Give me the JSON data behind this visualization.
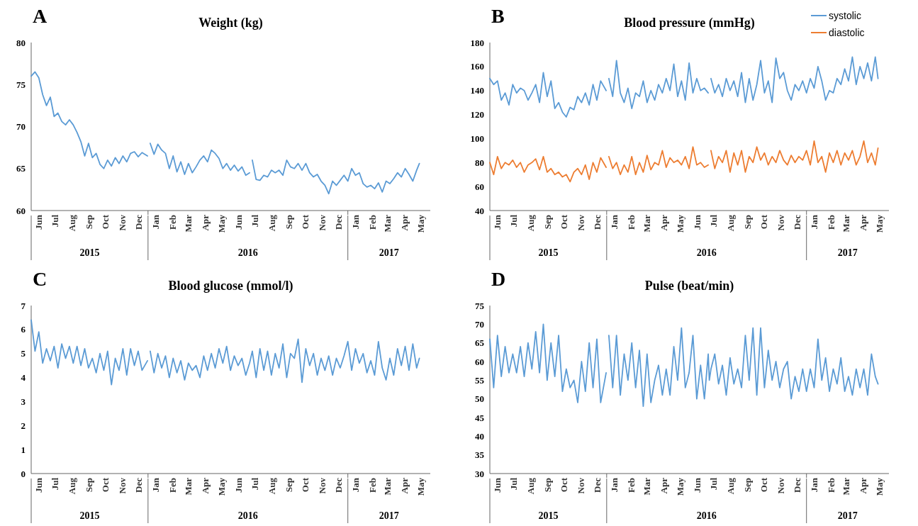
{
  "chart_data": [
    {
      "type": "line",
      "title": "Weight (kg)",
      "annotations": [
        "A",
        "2015",
        "2016",
        "2017"
      ],
      "legend": false,
      "grid": false,
      "x": [
        "2015-06-01",
        "2015-06-08",
        "2015-06-15",
        "2015-06-22",
        "2015-06-29",
        "2015-07-06",
        "2015-07-13",
        "2015-07-20",
        "2015-07-27",
        "2015-08-03",
        "2015-08-10",
        "2015-08-17",
        "2015-08-24",
        "2015-08-31",
        "2015-09-07",
        "2015-09-14",
        "2015-09-21",
        "2015-09-28",
        "2015-10-05",
        "2015-10-12",
        "2015-10-19",
        "2015-10-26",
        "2015-11-02",
        "2015-11-09",
        "2015-11-16",
        "2015-11-23",
        "2015-11-30",
        "2015-12-07",
        "2015-12-14",
        "2015-12-21",
        "2015-12-31",
        "2016-01-01",
        "2016-01-05",
        "2016-01-12",
        "2016-01-19",
        "2016-01-26",
        "2016-02-02",
        "2016-02-09",
        "2016-02-16",
        "2016-02-23",
        "2016-03-01",
        "2016-03-08",
        "2016-03-15",
        "2016-03-22",
        "2016-03-29",
        "2016-04-05",
        "2016-04-12",
        "2016-04-19",
        "2016-04-26",
        "2016-05-03",
        "2016-05-10",
        "2016-05-17",
        "2016-05-24",
        "2016-05-31",
        "2016-06-07",
        "2016-06-14",
        "2016-06-21",
        "2016-06-28",
        "2016-07-05",
        "2016-07-07",
        "2016-07-10",
        "2016-07-17",
        "2016-07-24",
        "2016-07-31",
        "2016-08-07",
        "2016-08-14",
        "2016-08-21",
        "2016-08-28",
        "2016-09-04",
        "2016-09-11",
        "2016-09-18",
        "2016-09-25",
        "2016-10-02",
        "2016-10-09",
        "2016-10-16",
        "2016-10-23",
        "2016-10-30",
        "2016-11-06",
        "2016-11-13",
        "2016-11-20",
        "2016-11-27",
        "2016-12-04",
        "2016-12-11",
        "2016-12-18",
        "2016-12-25",
        "2017-01-01",
        "2017-01-08",
        "2017-01-15",
        "2017-01-22",
        "2017-01-29",
        "2017-02-05",
        "2017-02-12",
        "2017-02-19",
        "2017-02-26",
        "2017-03-05",
        "2017-03-12",
        "2017-03-19",
        "2017-03-26",
        "2017-04-02",
        "2017-04-09",
        "2017-04-16",
        "2017-04-23",
        "2017-04-30",
        "2017-05-07",
        "2017-05-12"
      ],
      "xlim": [
        "2015-06-01",
        "2017-06-01"
      ],
      "xticks": [
        {
          "value": "2015-06-15",
          "label": "Jun"
        },
        {
          "value": "2015-07-15",
          "label": "Jul"
        },
        {
          "value": "2015-08-15",
          "label": "Aug"
        },
        {
          "value": "2015-09-15",
          "label": "Sep"
        },
        {
          "value": "2015-10-15",
          "label": "Oct"
        },
        {
          "value": "2015-11-15",
          "label": "Nov"
        },
        {
          "value": "2015-12-15",
          "label": "Dec"
        },
        {
          "value": "2016-01-01",
          "label": null
        },
        {
          "value": "2016-01-15",
          "label": "Jan"
        },
        {
          "value": "2016-02-15",
          "label": "Feb"
        },
        {
          "value": "2016-03-15",
          "label": "Mar"
        },
        {
          "value": "2016-04-15",
          "label": "Apr"
        },
        {
          "value": "2016-05-15",
          "label": "May"
        },
        {
          "value": "2016-06-15",
          "label": "Jun"
        },
        {
          "value": "2016-07-15",
          "label": "Jul"
        },
        {
          "value": "2016-08-15",
          "label": "Aug"
        },
        {
          "value": "2016-09-15",
          "label": "Sep"
        },
        {
          "value": "2016-10-15",
          "label": "Oct"
        },
        {
          "value": "2016-11-15",
          "label": "Nov"
        },
        {
          "value": "2016-12-15",
          "label": "Dec"
        },
        {
          "value": "2017-01-01",
          "label": null
        },
        {
          "value": "2017-01-15",
          "label": "Jan"
        },
        {
          "value": "2017-02-15",
          "label": "Feb"
        },
        {
          "value": "2017-03-15",
          "label": "Mar"
        },
        {
          "value": "2017-04-15",
          "label": "Apr"
        },
        {
          "value": "2017-05-15",
          "label": "May"
        }
      ],
      "ylim": [
        60,
        80
      ],
      "yticks": [
        60,
        65,
        70,
        75,
        80
      ],
      "series": [
        {
          "color": "#5b9bd5",
          "values": [
            76,
            76.5,
            75.8,
            73.8,
            72.5,
            73.5,
            71.2,
            71.6,
            70.6,
            70.2,
            70.8,
            70.2,
            69.3,
            68.2,
            66.5,
            68,
            66.3,
            66.8,
            65.5,
            65,
            66,
            65.3,
            66.3,
            65.6,
            66.5,
            65.8,
            66.8,
            67,
            66.4,
            66.9,
            66.5,
            null,
            68,
            66.7,
            67.9,
            67.2,
            66.8,
            65,
            66.5,
            64.6,
            65.8,
            64.3,
            65.6,
            64.5,
            65.2,
            66,
            66.5,
            65.8,
            67.2,
            66.8,
            66.2,
            65,
            65.6,
            64.8,
            65.4,
            64.7,
            65.2,
            64.2,
            64.5,
            null,
            66,
            63.7,
            63.6,
            64.2,
            64,
            64.8,
            64.5,
            64.8,
            64.2,
            66,
            65.2,
            65,
            65.6,
            64.8,
            65.6,
            64.5,
            64,
            64.3,
            63.5,
            63,
            62,
            63.5,
            63,
            63.6,
            64.2,
            63.5,
            65,
            64.2,
            64.5,
            63.2,
            62.8,
            63,
            62.6,
            63.3,
            62.2,
            63.5,
            63.2,
            63.8,
            64.5,
            64,
            65,
            64.3,
            63.5,
            64.8,
            65.6
          ]
        }
      ]
    },
    {
      "type": "line",
      "title": "Blood pressure (mmHg)",
      "annotations": [
        "B",
        "2015",
        "2016",
        "2017"
      ],
      "legend": "top right",
      "grid": false,
      "x": [
        "2015-06-01",
        "2015-06-08",
        "2015-06-15",
        "2015-06-22",
        "2015-06-29",
        "2015-07-06",
        "2015-07-13",
        "2015-07-20",
        "2015-07-27",
        "2015-08-03",
        "2015-08-10",
        "2015-08-17",
        "2015-08-24",
        "2015-08-31",
        "2015-09-07",
        "2015-09-14",
        "2015-09-21",
        "2015-09-28",
        "2015-10-05",
        "2015-10-12",
        "2015-10-19",
        "2015-10-26",
        "2015-11-02",
        "2015-11-09",
        "2015-11-16",
        "2015-11-23",
        "2015-11-30",
        "2015-12-07",
        "2015-12-14",
        "2015-12-21",
        "2015-12-31",
        "2016-01-01",
        "2016-01-05",
        "2016-01-12",
        "2016-01-19",
        "2016-01-26",
        "2016-02-02",
        "2016-02-09",
        "2016-02-16",
        "2016-02-23",
        "2016-03-01",
        "2016-03-08",
        "2016-03-15",
        "2016-03-22",
        "2016-03-29",
        "2016-04-05",
        "2016-04-12",
        "2016-04-19",
        "2016-04-26",
        "2016-05-03",
        "2016-05-10",
        "2016-05-17",
        "2016-05-24",
        "2016-05-31",
        "2016-06-07",
        "2016-06-14",
        "2016-06-21",
        "2016-06-28",
        "2016-07-05",
        "2016-07-07",
        "2016-07-10",
        "2016-07-17",
        "2016-07-24",
        "2016-07-31",
        "2016-08-07",
        "2016-08-14",
        "2016-08-21",
        "2016-08-28",
        "2016-09-04",
        "2016-09-11",
        "2016-09-18",
        "2016-09-25",
        "2016-10-02",
        "2016-10-09",
        "2016-10-16",
        "2016-10-23",
        "2016-10-30",
        "2016-11-06",
        "2016-11-13",
        "2016-11-20",
        "2016-11-27",
        "2016-12-04",
        "2016-12-11",
        "2016-12-18",
        "2016-12-25",
        "2017-01-01",
        "2017-01-08",
        "2017-01-15",
        "2017-01-22",
        "2017-01-29",
        "2017-02-05",
        "2017-02-12",
        "2017-02-19",
        "2017-02-26",
        "2017-03-05",
        "2017-03-12",
        "2017-03-19",
        "2017-03-26",
        "2017-04-02",
        "2017-04-09",
        "2017-04-16",
        "2017-04-23",
        "2017-04-30",
        "2017-05-07",
        "2017-05-12"
      ],
      "xlim": [
        "2015-06-01",
        "2017-06-01"
      ],
      "xticks": [
        {
          "value": "2015-06-15",
          "label": "Jun"
        },
        {
          "value": "2015-07-15",
          "label": "Jul"
        },
        {
          "value": "2015-08-15",
          "label": "Aug"
        },
        {
          "value": "2015-09-15",
          "label": "Sep"
        },
        {
          "value": "2015-10-15",
          "label": "Oct"
        },
        {
          "value": "2015-11-15",
          "label": "Nov"
        },
        {
          "value": "2015-12-15",
          "label": "Dec"
        },
        {
          "value": "2016-01-01",
          "label": null
        },
        {
          "value": "2016-01-15",
          "label": "Jan"
        },
        {
          "value": "2016-02-15",
          "label": "Feb"
        },
        {
          "value": "2016-03-15",
          "label": "Mar"
        },
        {
          "value": "2016-04-15",
          "label": "Apr"
        },
        {
          "value": "2016-05-15",
          "label": "May"
        },
        {
          "value": "2016-06-15",
          "label": "Jun"
        },
        {
          "value": "2016-07-15",
          "label": "Jul"
        },
        {
          "value": "2016-08-15",
          "label": "Aug"
        },
        {
          "value": "2016-09-15",
          "label": "Sep"
        },
        {
          "value": "2016-10-15",
          "label": "Oct"
        },
        {
          "value": "2016-11-15",
          "label": "Nov"
        },
        {
          "value": "2016-12-15",
          "label": "Dec"
        },
        {
          "value": "2017-01-01",
          "label": null
        },
        {
          "value": "2017-01-15",
          "label": "Jan"
        },
        {
          "value": "2017-02-15",
          "label": "Feb"
        },
        {
          "value": "2017-03-15",
          "label": "Mar"
        },
        {
          "value": "2017-04-15",
          "label": "Apr"
        },
        {
          "value": "2017-05-15",
          "label": "May"
        }
      ],
      "ylim": [
        40,
        180
      ],
      "yticks": [
        40,
        60,
        80,
        100,
        120,
        140,
        160,
        180
      ],
      "series": [
        {
          "name": "systolic",
          "color": "#5b9bd5",
          "values": [
            150,
            145,
            148,
            132,
            138,
            128,
            145,
            138,
            142,
            140,
            132,
            138,
            145,
            130,
            155,
            135,
            148,
            125,
            130,
            122,
            118,
            126,
            124,
            135,
            130,
            138,
            128,
            145,
            132,
            148,
            140,
            null,
            150,
            135,
            165,
            138,
            130,
            142,
            125,
            138,
            135,
            148,
            130,
            140,
            132,
            145,
            138,
            150,
            140,
            162,
            135,
            148,
            132,
            163,
            138,
            150,
            140,
            142,
            138,
            null,
            150,
            138,
            145,
            135,
            150,
            140,
            148,
            135,
            155,
            130,
            150,
            132,
            145,
            165,
            138,
            148,
            130,
            167,
            150,
            155,
            140,
            132,
            145,
            140,
            148,
            138,
            150,
            142,
            160,
            148,
            132,
            140,
            138,
            150,
            145,
            158,
            148,
            168,
            145,
            160,
            150,
            163,
            148,
            168,
            150
          ]
        },
        {
          "name": "diastolic",
          "color": "#ed7d31",
          "values": [
            80,
            70,
            85,
            75,
            80,
            78,
            82,
            76,
            80,
            72,
            78,
            80,
            83,
            74,
            85,
            72,
            75,
            70,
            72,
            68,
            70,
            64,
            72,
            75,
            70,
            78,
            66,
            80,
            72,
            84,
            76,
            null,
            85,
            75,
            80,
            70,
            78,
            72,
            85,
            70,
            80,
            72,
            86,
            74,
            80,
            78,
            90,
            76,
            84,
            80,
            82,
            78,
            85,
            75,
            93,
            78,
            80,
            76,
            78,
            null,
            90,
            75,
            85,
            80,
            90,
            72,
            88,
            78,
            90,
            72,
            85,
            80,
            93,
            82,
            88,
            78,
            85,
            80,
            90,
            82,
            78,
            86,
            80,
            85,
            82,
            90,
            78,
            98,
            80,
            85,
            72,
            88,
            80,
            90,
            78,
            88,
            82,
            90,
            78,
            85,
            98,
            80,
            88,
            78,
            92
          ]
        }
      ]
    },
    {
      "type": "line",
      "title": "Blood glucose (mmol/l)",
      "annotations": [
        "C",
        "2015",
        "2016",
        "2017"
      ],
      "legend": false,
      "grid": false,
      "x": [
        "2015-06-01",
        "2015-06-08",
        "2015-06-15",
        "2015-06-22",
        "2015-06-29",
        "2015-07-06",
        "2015-07-13",
        "2015-07-20",
        "2015-07-27",
        "2015-08-03",
        "2015-08-10",
        "2015-08-17",
        "2015-08-24",
        "2015-08-31",
        "2015-09-07",
        "2015-09-14",
        "2015-09-21",
        "2015-09-28",
        "2015-10-05",
        "2015-10-12",
        "2015-10-19",
        "2015-10-26",
        "2015-11-02",
        "2015-11-09",
        "2015-11-16",
        "2015-11-23",
        "2015-11-30",
        "2015-12-07",
        "2015-12-14",
        "2015-12-21",
        "2015-12-31",
        "2016-01-01",
        "2016-01-05",
        "2016-01-12",
        "2016-01-19",
        "2016-01-26",
        "2016-02-02",
        "2016-02-09",
        "2016-02-16",
        "2016-02-23",
        "2016-03-01",
        "2016-03-08",
        "2016-03-15",
        "2016-03-22",
        "2016-03-29",
        "2016-04-05",
        "2016-04-12",
        "2016-04-19",
        "2016-04-26",
        "2016-05-03",
        "2016-05-10",
        "2016-05-17",
        "2016-05-24",
        "2016-05-31",
        "2016-06-07",
        "2016-06-14",
        "2016-06-21",
        "2016-06-28",
        "2016-07-05",
        "2016-07-07",
        "2016-07-10",
        "2016-07-17",
        "2016-07-24",
        "2016-07-31",
        "2016-08-07",
        "2016-08-14",
        "2016-08-21",
        "2016-08-28",
        "2016-09-04",
        "2016-09-11",
        "2016-09-18",
        "2016-09-25",
        "2016-10-02",
        "2016-10-09",
        "2016-10-16",
        "2016-10-23",
        "2016-10-30",
        "2016-11-06",
        "2016-11-13",
        "2016-11-20",
        "2016-11-27",
        "2016-12-04",
        "2016-12-11",
        "2016-12-18",
        "2016-12-25",
        "2017-01-01",
        "2017-01-08",
        "2017-01-15",
        "2017-01-22",
        "2017-01-29",
        "2017-02-05",
        "2017-02-12",
        "2017-02-19",
        "2017-02-26",
        "2017-03-05",
        "2017-03-12",
        "2017-03-19",
        "2017-03-26",
        "2017-04-02",
        "2017-04-09",
        "2017-04-16",
        "2017-04-23",
        "2017-04-30",
        "2017-05-07",
        "2017-05-12"
      ],
      "xlim": [
        "2015-06-01",
        "2017-06-01"
      ],
      "xticks": [
        {
          "value": "2015-06-15",
          "label": "Jun"
        },
        {
          "value": "2015-07-15",
          "label": "Jul"
        },
        {
          "value": "2015-08-15",
          "label": "Aug"
        },
        {
          "value": "2015-09-15",
          "label": "Sep"
        },
        {
          "value": "2015-10-15",
          "label": "Oct"
        },
        {
          "value": "2015-11-15",
          "label": "Nov"
        },
        {
          "value": "2015-12-15",
          "label": "Dec"
        },
        {
          "value": "2016-01-01",
          "label": null
        },
        {
          "value": "2016-01-15",
          "label": "Jan"
        },
        {
          "value": "2016-02-15",
          "label": "Feb"
        },
        {
          "value": "2016-03-15",
          "label": "Mar"
        },
        {
          "value": "2016-04-15",
          "label": "Apr"
        },
        {
          "value": "2016-05-15",
          "label": "May"
        },
        {
          "value": "2016-06-15",
          "label": "Jun"
        },
        {
          "value": "2016-07-15",
          "label": "Jul"
        },
        {
          "value": "2016-08-15",
          "label": "Aug"
        },
        {
          "value": "2016-09-15",
          "label": "Sep"
        },
        {
          "value": "2016-10-15",
          "label": "Oct"
        },
        {
          "value": "2016-11-15",
          "label": "Nov"
        },
        {
          "value": "2016-12-15",
          "label": "Dec"
        },
        {
          "value": "2017-01-01",
          "label": null
        },
        {
          "value": "2017-01-15",
          "label": "Jan"
        },
        {
          "value": "2017-02-15",
          "label": "Feb"
        },
        {
          "value": "2017-03-15",
          "label": "Mar"
        },
        {
          "value": "2017-04-15",
          "label": "Apr"
        },
        {
          "value": "2017-05-15",
          "label": "May"
        }
      ],
      "ylim": [
        0,
        7
      ],
      "yticks": [
        0,
        1,
        2,
        3,
        4,
        5,
        6,
        7
      ],
      "series": [
        {
          "color": "#5b9bd5",
          "values": [
            6.4,
            5.1,
            5.9,
            4.6,
            5.2,
            4.7,
            5.3,
            4.4,
            5.4,
            4.8,
            5.3,
            4.6,
            5.3,
            4.5,
            5.2,
            4.4,
            4.8,
            4.2,
            5.0,
            4.3,
            5.1,
            3.7,
            4.8,
            4.3,
            5.2,
            4.1,
            5.2,
            4.5,
            5.1,
            4.3,
            4.7,
            null,
            5.1,
            4.2,
            5.0,
            4.4,
            4.9,
            4.0,
            4.8,
            4.2,
            4.7,
            3.9,
            4.6,
            4.3,
            4.5,
            4.0,
            4.9,
            4.3,
            5.0,
            4.4,
            5.2,
            4.6,
            5.3,
            4.3,
            4.9,
            4.5,
            4.8,
            4.1,
            4.6,
            4.8,
            5.1,
            4.0,
            5.2,
            4.3,
            5.1,
            4.1,
            5.0,
            4.4,
            5.4,
            4.0,
            5.0,
            4.8,
            5.6,
            3.8,
            5.2,
            4.5,
            5.0,
            4.1,
            4.8,
            4.3,
            4.9,
            4.1,
            4.8,
            4.4,
            4.9,
            5.5,
            4.3,
            5.2,
            4.6,
            5.0,
            4.2,
            4.7,
            4.1,
            5.5,
            4.4,
            3.9,
            4.8,
            4.1,
            5.2,
            4.5,
            5.3,
            4.3,
            5.4,
            4.4,
            4.8
          ]
        }
      ]
    },
    {
      "type": "line",
      "title": "Pulse (beat/min)",
      "annotations": [
        "D",
        "2015",
        "2016",
        "2017"
      ],
      "legend": false,
      "grid": false,
      "x": [
        "2015-06-01",
        "2015-06-08",
        "2015-06-15",
        "2015-06-22",
        "2015-06-29",
        "2015-07-06",
        "2015-07-13",
        "2015-07-20",
        "2015-07-27",
        "2015-08-03",
        "2015-08-10",
        "2015-08-17",
        "2015-08-24",
        "2015-08-31",
        "2015-09-07",
        "2015-09-14",
        "2015-09-21",
        "2015-09-28",
        "2015-10-05",
        "2015-10-12",
        "2015-10-19",
        "2015-10-26",
        "2015-11-02",
        "2015-11-09",
        "2015-11-16",
        "2015-11-23",
        "2015-11-30",
        "2015-12-07",
        "2015-12-14",
        "2015-12-21",
        "2015-12-31",
        "2016-01-01",
        "2016-01-05",
        "2016-01-12",
        "2016-01-19",
        "2016-01-26",
        "2016-02-02",
        "2016-02-09",
        "2016-02-16",
        "2016-02-23",
        "2016-03-01",
        "2016-03-08",
        "2016-03-15",
        "2016-03-22",
        "2016-03-29",
        "2016-04-05",
        "2016-04-12",
        "2016-04-19",
        "2016-04-26",
        "2016-05-03",
        "2016-05-10",
        "2016-05-17",
        "2016-05-24",
        "2016-05-31",
        "2016-06-07",
        "2016-06-14",
        "2016-06-21",
        "2016-06-28",
        "2016-07-05",
        "2016-07-07",
        "2016-07-10",
        "2016-07-17",
        "2016-07-24",
        "2016-07-31",
        "2016-08-07",
        "2016-08-14",
        "2016-08-21",
        "2016-08-28",
        "2016-09-04",
        "2016-09-11",
        "2016-09-18",
        "2016-09-25",
        "2016-10-02",
        "2016-10-09",
        "2016-10-16",
        "2016-10-23",
        "2016-10-30",
        "2016-11-06",
        "2016-11-13",
        "2016-11-20",
        "2016-11-27",
        "2016-12-04",
        "2016-12-11",
        "2016-12-18",
        "2016-12-25",
        "2017-01-01",
        "2017-01-08",
        "2017-01-15",
        "2017-01-22",
        "2017-01-29",
        "2017-02-05",
        "2017-02-12",
        "2017-02-19",
        "2017-02-26",
        "2017-03-05",
        "2017-03-12",
        "2017-03-19",
        "2017-03-26",
        "2017-04-02",
        "2017-04-09",
        "2017-04-16",
        "2017-04-23",
        "2017-04-30",
        "2017-05-07",
        "2017-05-12"
      ],
      "xlim": [
        "2015-06-01",
        "2017-06-01"
      ],
      "xticks": [
        {
          "value": "2015-06-15",
          "label": "Jun"
        },
        {
          "value": "2015-07-15",
          "label": "Jul"
        },
        {
          "value": "2015-08-15",
          "label": "Aug"
        },
        {
          "value": "2015-09-15",
          "label": "Sep"
        },
        {
          "value": "2015-10-15",
          "label": "Oct"
        },
        {
          "value": "2015-11-15",
          "label": "Nov"
        },
        {
          "value": "2015-12-15",
          "label": "Dec"
        },
        {
          "value": "2016-01-01",
          "label": null
        },
        {
          "value": "2016-01-15",
          "label": "Jan"
        },
        {
          "value": "2016-02-15",
          "label": "Feb"
        },
        {
          "value": "2016-03-15",
          "label": "Mar"
        },
        {
          "value": "2016-04-15",
          "label": "Apr"
        },
        {
          "value": "2016-05-15",
          "label": "May"
        },
        {
          "value": "2016-06-15",
          "label": "Jun"
        },
        {
          "value": "2016-07-15",
          "label": "Jul"
        },
        {
          "value": "2016-08-15",
          "label": "Aug"
        },
        {
          "value": "2016-09-15",
          "label": "Sep"
        },
        {
          "value": "2016-10-15",
          "label": "Oct"
        },
        {
          "value": "2016-11-15",
          "label": "Nov"
        },
        {
          "value": "2016-12-15",
          "label": "Dec"
        },
        {
          "value": "2017-01-01",
          "label": null
        },
        {
          "value": "2017-01-15",
          "label": "Jan"
        },
        {
          "value": "2017-02-15",
          "label": "Feb"
        },
        {
          "value": "2017-03-15",
          "label": "Mar"
        },
        {
          "value": "2017-04-15",
          "label": "Apr"
        },
        {
          "value": "2017-05-15",
          "label": "May"
        }
      ],
      "ylim": [
        30,
        75
      ],
      "yticks": [
        30,
        35,
        40,
        45,
        50,
        55,
        60,
        65,
        70,
        75
      ],
      "series": [
        {
          "color": "#5b9bd5",
          "values": [
            66,
            53,
            67,
            56,
            64,
            57,
            62,
            57,
            64,
            56,
            65,
            58,
            68,
            57,
            70,
            55,
            65,
            56,
            67,
            52,
            58,
            53,
            55,
            49,
            60,
            52,
            65,
            53,
            66,
            49,
            57,
            null,
            67,
            53,
            67,
            51,
            62,
            55,
            65,
            53,
            63,
            48,
            62,
            49,
            55,
            59,
            51,
            58,
            51,
            64,
            55,
            69,
            53,
            57,
            67,
            50,
            59,
            50,
            62,
            55,
            58,
            62,
            54,
            59,
            51,
            61,
            54,
            58,
            53,
            67,
            55,
            69,
            51,
            69,
            53,
            63,
            55,
            60,
            53,
            58,
            60,
            50,
            56,
            52,
            58,
            52,
            58,
            53,
            66,
            55,
            61,
            52,
            58,
            54,
            61,
            52,
            56,
            51,
            58,
            53,
            58,
            51,
            62,
            56,
            54
          ]
        }
      ]
    }
  ]
}
